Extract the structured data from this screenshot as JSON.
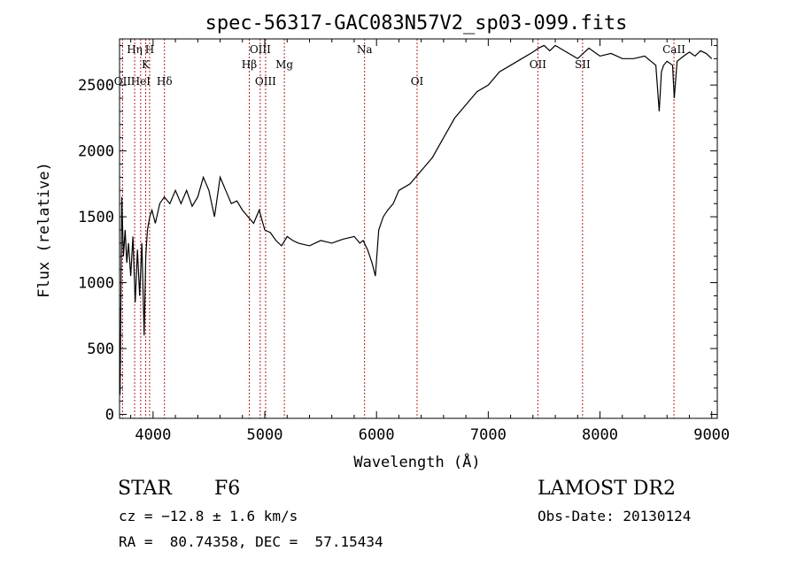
{
  "chart_data": {
    "type": "line",
    "title": "spec-56317-GAC083N57V2_sp03-099.fits",
    "xlabel": "Wavelength (Å)",
    "ylabel": "Flux (relative)",
    "xlim": [
      3700,
      9050
    ],
    "ylim": [
      -30,
      2850
    ],
    "xticks": [
      4000,
      5000,
      6000,
      7000,
      8000,
      9000
    ],
    "xtick_labels": [
      "4000",
      "5000",
      "6000",
      "7000",
      "8000",
      "9000"
    ],
    "yticks": [
      0,
      500,
      1000,
      1500,
      2000,
      2500
    ],
    "ytick_labels": [
      "0",
      "500",
      "1000",
      "1500",
      "2000",
      "2500"
    ],
    "grid": false,
    "line_color": "#000000",
    "marker_color": "#b22222",
    "series": [
      {
        "x": [
          3705,
          3720,
          3735,
          3750,
          3765,
          3780,
          3800,
          3820,
          3840,
          3860,
          3880,
          3900,
          3920,
          3935,
          3950,
          3970,
          3990,
          4020,
          4060,
          4100,
          4150,
          4200,
          4250,
          4300,
          4350,
          4400,
          4450,
          4500,
          4550,
          4600,
          4650,
          4700,
          4750,
          4800,
          4850,
          4900,
          4950,
          5000,
          5050,
          5100,
          5150,
          5200,
          5250,
          5300,
          5400,
          5500,
          5600,
          5700,
          5800,
          5850,
          5880,
          5920,
          5960,
          5990,
          6020,
          6060,
          6100,
          6150,
          6200,
          6300,
          6400,
          6500,
          6600,
          6700,
          6800,
          6900,
          7000,
          7100,
          7200,
          7300,
          7400,
          7450,
          7500,
          7550,
          7600,
          7700,
          7800,
          7900,
          8000,
          8100,
          8200,
          8300,
          8400,
          8500,
          8530,
          8550,
          8570,
          8600,
          8650,
          8665,
          8690,
          8750,
          8800,
          8850,
          8900,
          8950,
          9000
        ],
        "y": [
          150,
          1650,
          1200,
          1400,
          1150,
          1300,
          1050,
          1350,
          850,
          1250,
          900,
          1300,
          600,
          1200,
          1400,
          1500,
          1550,
          1450,
          1600,
          1650,
          1600,
          1700,
          1600,
          1700,
          1580,
          1650,
          1800,
          1700,
          1500,
          1800,
          1700,
          1600,
          1620,
          1550,
          1500,
          1450,
          1550,
          1400,
          1380,
          1320,
          1280,
          1350,
          1320,
          1300,
          1280,
          1320,
          1300,
          1330,
          1350,
          1300,
          1320,
          1250,
          1150,
          1050,
          1400,
          1500,
          1550,
          1600,
          1700,
          1750,
          1850,
          1950,
          2100,
          2250,
          2350,
          2450,
          2500,
          2600,
          2650,
          2700,
          2750,
          2780,
          2800,
          2760,
          2800,
          2750,
          2700,
          2780,
          2720,
          2740,
          2700,
          2700,
          2720,
          2650,
          2300,
          2600,
          2650,
          2680,
          2650,
          2400,
          2680,
          2720,
          2750,
          2720,
          2760,
          2740,
          2700
        ]
      }
    ],
    "line_markers": [
      {
        "x": 3727,
        "label": "OII",
        "row": 2
      },
      {
        "x": 3835,
        "label": "Hη",
        "row": 0
      },
      {
        "x": 3889,
        "label": "HeI",
        "row": 2
      },
      {
        "x": 3934,
        "label": "K",
        "row": 1
      },
      {
        "x": 3969,
        "label": "H",
        "row": 0
      },
      {
        "x": 4102,
        "label": "Hδ",
        "row": 2
      },
      {
        "x": 4861,
        "label": "Hβ",
        "row": 1
      },
      {
        "x": 4959,
        "label": "OIII",
        "row": 0
      },
      {
        "x": 5007,
        "label": "OIII",
        "row": 2
      },
      {
        "x": 5175,
        "label": "Mg",
        "row": 1
      },
      {
        "x": 5893,
        "label": "Na",
        "row": 0
      },
      {
        "x": 6363,
        "label": "OI",
        "row": 2
      },
      {
        "x": 7444,
        "label": "OII",
        "row": 1
      },
      {
        "x": 7844,
        "label": "SII",
        "row": 1
      },
      {
        "x": 8662,
        "label": "CaII",
        "row": 0
      }
    ]
  },
  "info": {
    "class_label": "STAR",
    "subclass": "F6",
    "survey": "LAMOST DR2",
    "cz": "cz = −12.8 ± 1.6 km/s",
    "obs_date": "Obs-Date: 20130124",
    "coords": "RA =  80.74358, DEC =  57.15434"
  }
}
